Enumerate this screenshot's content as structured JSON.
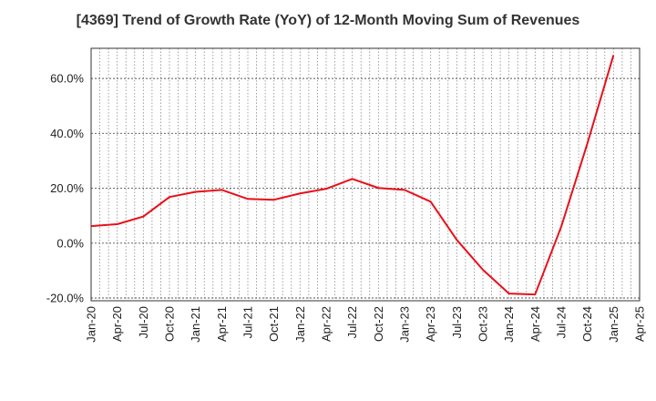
{
  "chart_data": {
    "type": "line",
    "title": "[4369]  Trend of Growth Rate (YoY) of 12-Month Moving Sum of Revenues",
    "xlabel": "",
    "ylabel": "",
    "x_tick_labels": [
      "Jan-20",
      "Apr-20",
      "Jul-20",
      "Oct-20",
      "Jan-21",
      "Apr-21",
      "Jul-21",
      "Oct-21",
      "Jan-22",
      "Apr-22",
      "Jul-22",
      "Oct-22",
      "Jan-23",
      "Apr-23",
      "Jul-23",
      "Oct-23",
      "Jan-24",
      "Apr-24",
      "Jul-24",
      "Oct-24",
      "Jan-25",
      "Apr-25"
    ],
    "y_ticks": [
      -20,
      0,
      20,
      40,
      60
    ],
    "y_tick_labels": [
      "-20.0%",
      "0.0%",
      "20.0%",
      "40.0%",
      "60.0%"
    ],
    "ylim": [
      -21,
      71
    ],
    "grid": true,
    "series": [
      {
        "color": "#e8101a",
        "x": [
          "Jan-20",
          "Apr-20",
          "Jul-20",
          "Oct-20",
          "Jan-21",
          "Apr-21",
          "Jul-21",
          "Oct-21",
          "Jan-22",
          "Apr-22",
          "Jul-22",
          "Oct-22",
          "Jan-23",
          "Apr-23",
          "Jul-23",
          "Oct-23",
          "Jan-24",
          "Apr-24",
          "Jul-24",
          "Oct-24",
          "Jan-25"
        ],
        "values": [
          6.2,
          6.9,
          9.7,
          16.8,
          18.7,
          19.4,
          16.1,
          15.8,
          18.1,
          19.8,
          23.4,
          20.1,
          19.4,
          15.1,
          1.2,
          -9.7,
          -18.4,
          -18.7,
          6.0,
          36.3,
          68.5
        ]
      }
    ]
  }
}
